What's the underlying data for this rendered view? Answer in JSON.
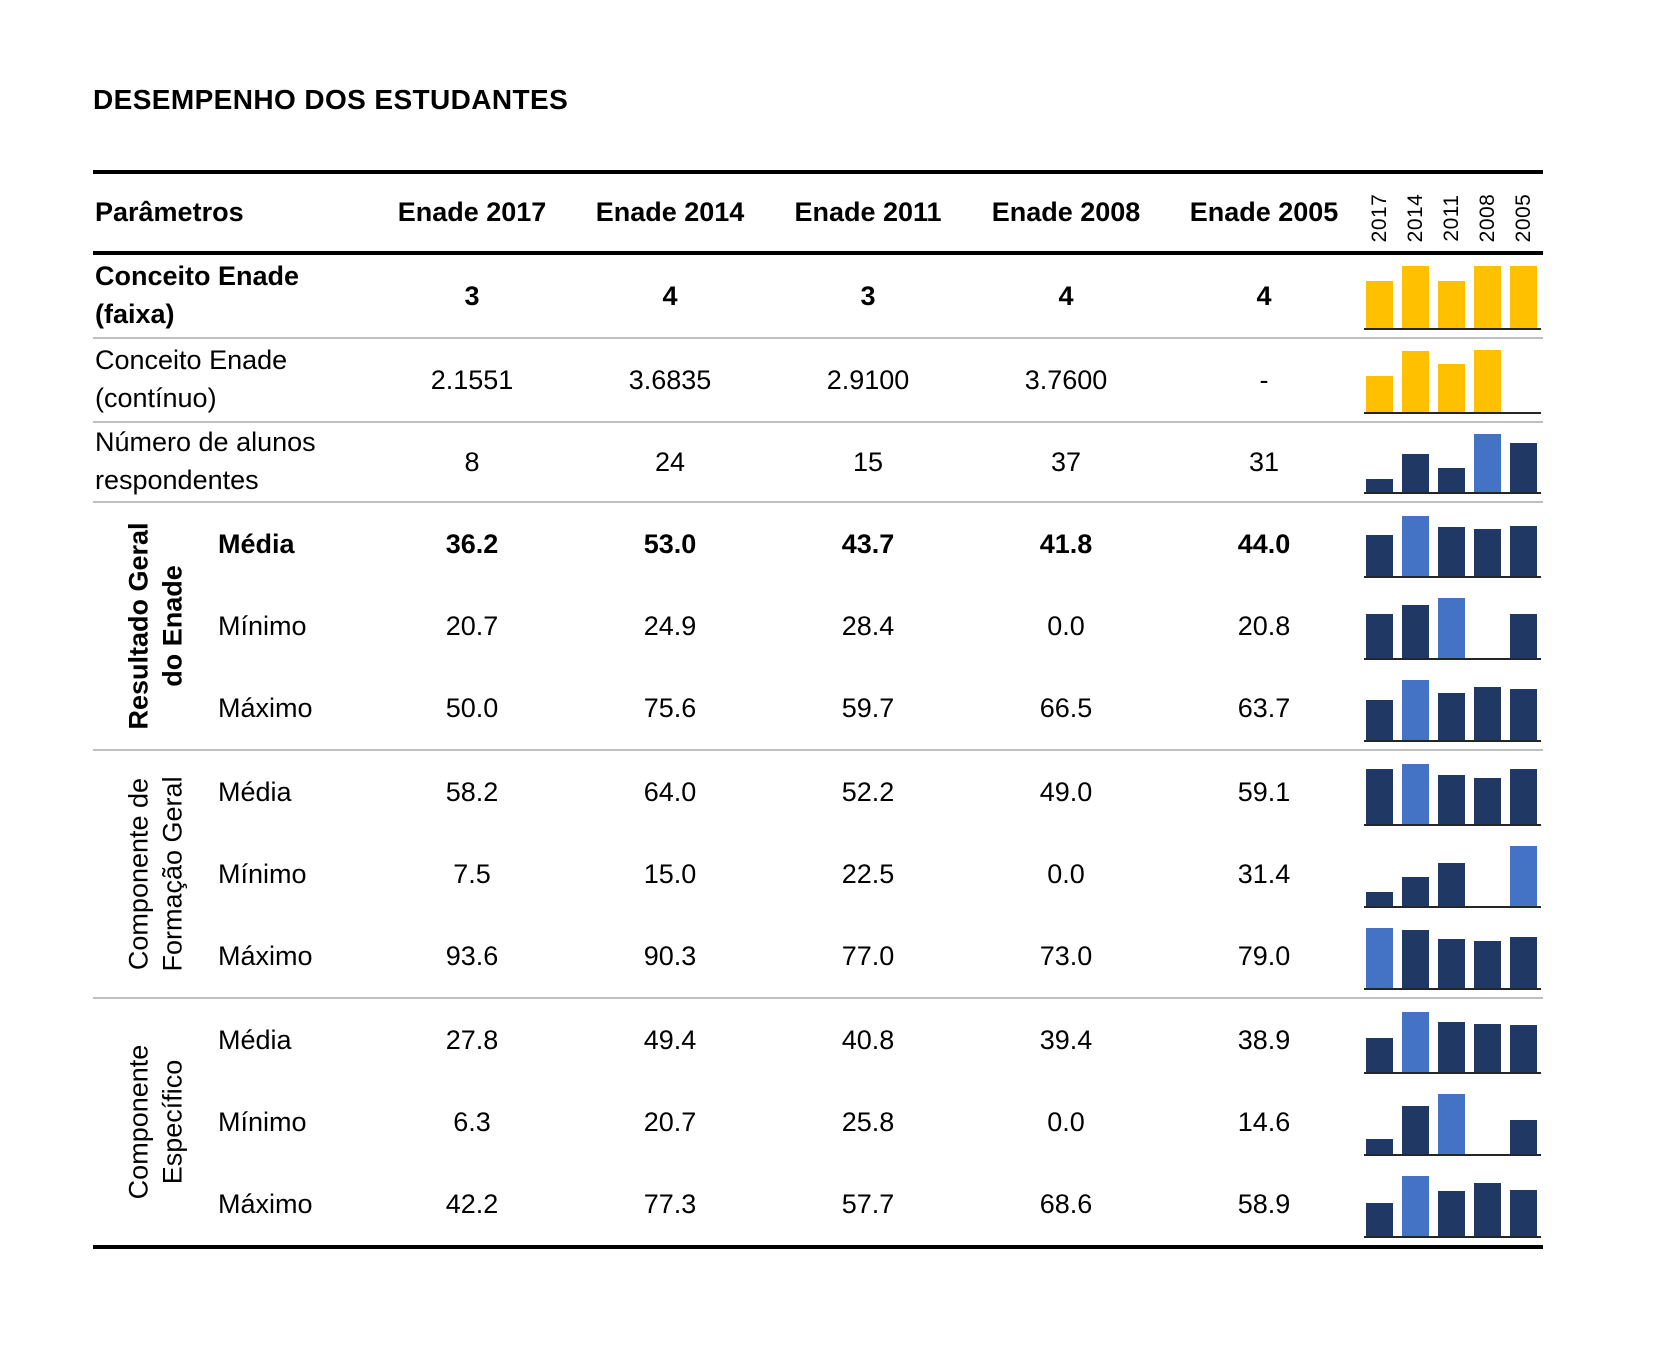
{
  "title": "DESEMPENHO DOS ESTUDANTES",
  "colors": {
    "bar_dark": "#1F3864",
    "bar_highlight": "#4472C4",
    "bar_yellow": "#FFC000",
    "divider": "#BFBFBF",
    "table_line": "#000000"
  },
  "chart_data": {
    "type": "table",
    "title": "DESEMPENHO DOS ESTUDANTES",
    "legend_position": "none",
    "grid": "off",
    "header": {
      "param_label": "Parâmetros",
      "columns": [
        "Enade 2017",
        "Enade 2014",
        "Enade 2011",
        "Enade 2008",
        "Enade 2005"
      ],
      "spark_years": [
        "2017",
        "2014",
        "2011",
        "2008",
        "2005"
      ]
    },
    "sparkline_note": "each row has a mini bar chart scaled to its own max; in dark-blue rows the maximum bar is highlighted light blue; zero or missing values have no bar",
    "sections": [
      {
        "group": null,
        "rows": [
          {
            "label": [
              "Conceito Enade",
              "(faixa)"
            ],
            "bold": true,
            "display": [
              "3",
              "4",
              "3",
              "4",
              "4"
            ],
            "values": [
              3,
              4,
              3,
              4,
              4
            ],
            "bar_style": "yellow"
          },
          {
            "label": [
              "Conceito Enade",
              "(contínuo)"
            ],
            "bold": false,
            "display": [
              "2.1551",
              "3.6835",
              "2.9100",
              "3.7600",
              "-"
            ],
            "values": [
              2.1551,
              3.6835,
              2.91,
              3.76,
              null
            ],
            "bar_style": "yellow"
          },
          {
            "label": [
              "Número de alunos",
              "respondentes"
            ],
            "bold": false,
            "display": [
              "8",
              "24",
              "15",
              "37",
              "31"
            ],
            "values": [
              8,
              24,
              15,
              37,
              31
            ],
            "bar_style": "blue"
          }
        ]
      },
      {
        "group": [
          "Resultado Geral",
          "do Enade"
        ],
        "group_bold": true,
        "rows": [
          {
            "label": [
              "Média"
            ],
            "bold": true,
            "display": [
              "36.2",
              "53.0",
              "43.7",
              "41.8",
              "44.0"
            ],
            "values": [
              36.2,
              53.0,
              43.7,
              41.8,
              44.0
            ],
            "bar_style": "blue"
          },
          {
            "label": [
              "Mínimo"
            ],
            "bold": false,
            "display": [
              "20.7",
              "24.9",
              "28.4",
              "0.0",
              "20.8"
            ],
            "values": [
              20.7,
              24.9,
              28.4,
              0.0,
              20.8
            ],
            "bar_style": "blue"
          },
          {
            "label": [
              "Máximo"
            ],
            "bold": false,
            "display": [
              "50.0",
              "75.6",
              "59.7",
              "66.5",
              "63.7"
            ],
            "values": [
              50.0,
              75.6,
              59.7,
              66.5,
              63.7
            ],
            "bar_style": "blue"
          }
        ]
      },
      {
        "group": [
          "Componente de",
          "Formação Geral"
        ],
        "group_bold": false,
        "rows": [
          {
            "label": [
              "Média"
            ],
            "bold": false,
            "display": [
              "58.2",
              "64.0",
              "52.2",
              "49.0",
              "59.1"
            ],
            "values": [
              58.2,
              64.0,
              52.2,
              49.0,
              59.1
            ],
            "bar_style": "blue"
          },
          {
            "label": [
              "Mínimo"
            ],
            "bold": false,
            "display": [
              "7.5",
              "15.0",
              "22.5",
              "0.0",
              "31.4"
            ],
            "values": [
              7.5,
              15.0,
              22.5,
              0.0,
              31.4
            ],
            "bar_style": "blue"
          },
          {
            "label": [
              "Máximo"
            ],
            "bold": false,
            "display": [
              "93.6",
              "90.3",
              "77.0",
              "73.0",
              "79.0"
            ],
            "values": [
              93.6,
              90.3,
              77.0,
              73.0,
              79.0
            ],
            "bar_style": "blue"
          }
        ]
      },
      {
        "group": [
          "Componente",
          "Específico"
        ],
        "group_bold": false,
        "rows": [
          {
            "label": [
              "Média"
            ],
            "bold": false,
            "display": [
              "27.8",
              "49.4",
              "40.8",
              "39.4",
              "38.9"
            ],
            "values": [
              27.8,
              49.4,
              40.8,
              39.4,
              38.9
            ],
            "bar_style": "blue"
          },
          {
            "label": [
              "Mínimo"
            ],
            "bold": false,
            "display": [
              "6.3",
              "20.7",
              "25.8",
              "0.0",
              "14.6"
            ],
            "values": [
              6.3,
              20.7,
              25.8,
              0.0,
              14.6
            ],
            "bar_style": "blue"
          },
          {
            "label": [
              "Máximo"
            ],
            "bold": false,
            "display": [
              "42.2",
              "77.3",
              "57.7",
              "68.6",
              "58.9"
            ],
            "values": [
              42.2,
              77.3,
              57.7,
              68.6,
              58.9
            ],
            "bar_style": "blue"
          }
        ]
      }
    ]
  }
}
